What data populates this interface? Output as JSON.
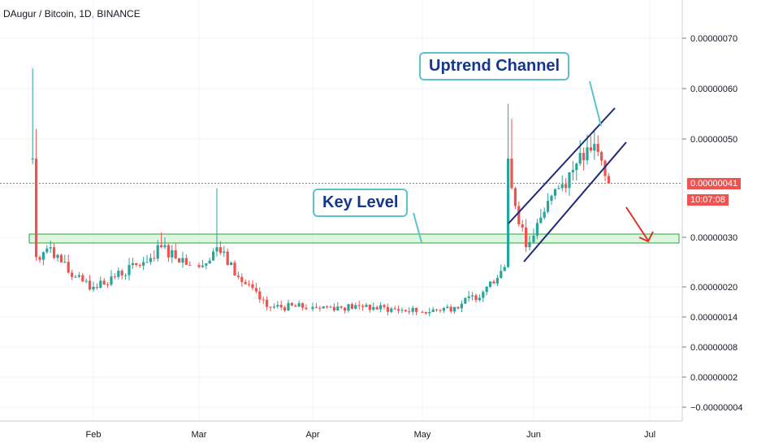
{
  "header": {
    "symbol": "DAugur / Bitcoin, 1D, BINANCE"
  },
  "annotations": {
    "uptrend_channel": "Uptrend Channel",
    "key_level": "Key Level"
  },
  "price_badge": {
    "price": "0.00000041",
    "countdown": "10:07:08"
  },
  "colors": {
    "up": "#26a69a",
    "down": "#ef5350",
    "grid": "#f0f3fa",
    "channel": "#1e2a78",
    "zone_fill": "#c8f2c8",
    "zone_stroke": "#2ea043",
    "callout_border": "#5ec3c9",
    "callout_text": "#17378a",
    "arrow": "#e0302a"
  },
  "chart_data": {
    "type": "candlestick",
    "title": "DAugur / Bitcoin, 1D, BINANCE",
    "y_scale": "log",
    "y_ticks": [
      "0.00000070",
      "0.00000060",
      "0.00000050",
      "0.00000030",
      "0.00000020",
      "0.00000014",
      "0.00000008",
      "0.00000002",
      "−0.00000004"
    ],
    "x_ticks": [
      "Feb",
      "Mar",
      "Apr",
      "May",
      "Jun",
      "Jul"
    ],
    "current_price": 4.1e-07,
    "key_level": 3e-07,
    "ohlc_anchors": [
      {
        "date": "Jan 15",
        "close": 4.6e-07,
        "high": 6.4e-07
      },
      {
        "date": "Jan 16",
        "close": 2.6e-07,
        "high": 5.2e-07
      },
      {
        "date": "Jan 20",
        "close": 2.8e-07
      },
      {
        "date": "Jan 26",
        "close": 2.2e-07
      },
      {
        "date": "Feb 1",
        "close": 2e-07
      },
      {
        "date": "Feb 15",
        "close": 2.5e-07
      },
      {
        "date": "Feb 20",
        "close": 2.8e-07,
        "high": 3.1e-07
      },
      {
        "date": "Mar 1",
        "close": 2.4e-07
      },
      {
        "date": "Mar 6",
        "close": 2.8e-07,
        "high": 4e-07
      },
      {
        "date": "Mar 12",
        "close": 2.2e-07
      },
      {
        "date": "Mar 20",
        "close": 1.6e-07
      },
      {
        "date": "Apr 1",
        "close": 1.6e-07
      },
      {
        "date": "Apr 15",
        "close": 1.6e-07
      },
      {
        "date": "May 1",
        "close": 1.5e-07
      },
      {
        "date": "May 10",
        "close": 1.6e-07
      },
      {
        "date": "May 18",
        "close": 1.9e-07
      },
      {
        "date": "May 24",
        "close": 2.4e-07
      },
      {
        "date": "May 25",
        "close": 4.6e-07,
        "high": 5.7e-07
      },
      {
        "date": "May 26",
        "close": 4e-07,
        "high": 5.4e-07
      },
      {
        "date": "May 30",
        "close": 2.8e-07
      },
      {
        "date": "Jun 3",
        "close": 3.4e-07
      },
      {
        "date": "Jun 8",
        "close": 4e-07
      },
      {
        "date": "Jun 13",
        "close": 4.5e-07
      },
      {
        "date": "Jun 18",
        "close": 4.9e-07,
        "high": 5.2e-07
      },
      {
        "date": "Jun 22",
        "close": 4.1e-07
      }
    ]
  }
}
